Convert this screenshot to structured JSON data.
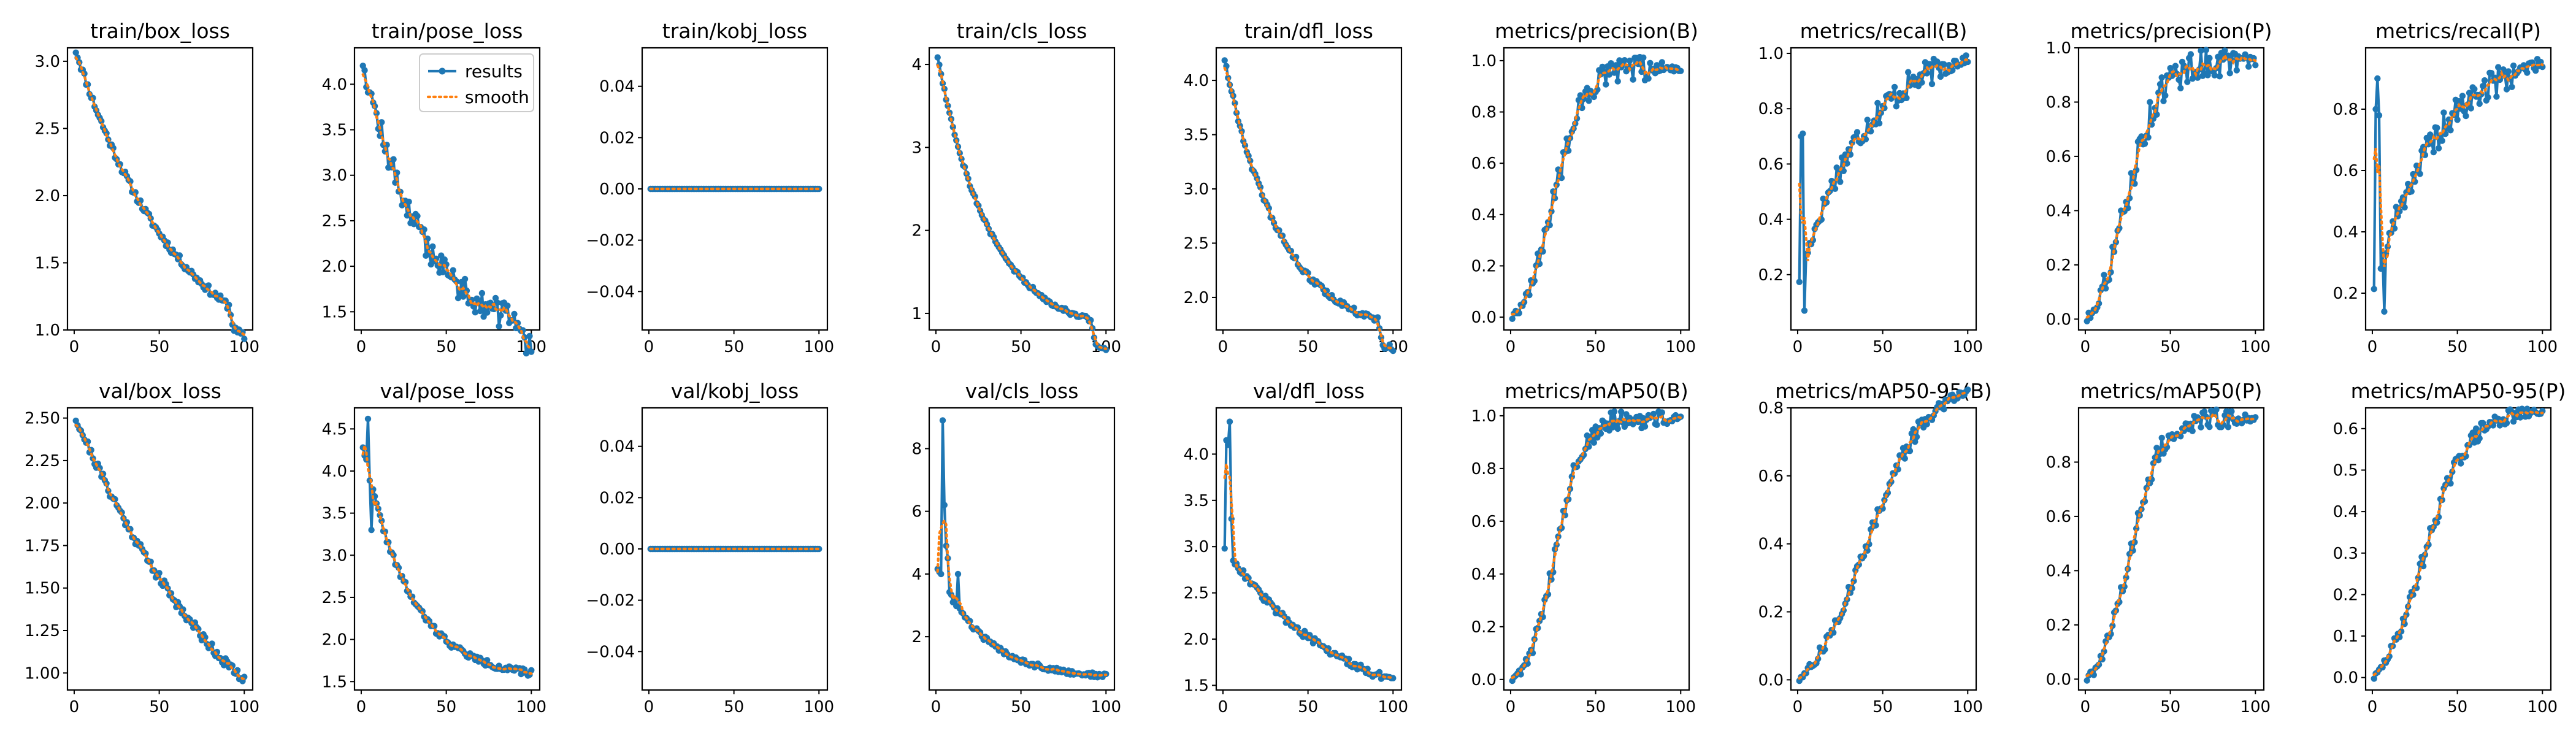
{
  "colors": {
    "results": "#1f77b4",
    "smooth": "#ff7f0e"
  },
  "legend": {
    "results_label": "results",
    "smooth_label": "smooth",
    "placement": "upper-right of panel 2"
  },
  "chart_data": [
    {
      "type": "line",
      "title": "train/box_loss",
      "x_range": [
        1,
        100
      ],
      "ylim": [
        1.0,
        3.1
      ],
      "yticks": [
        1.0,
        1.5,
        2.0,
        2.5,
        3.0
      ],
      "yticklabels": [
        "1.0",
        "1.5",
        "2.0",
        "2.5",
        "3.0"
      ],
      "xticks": [
        0,
        50,
        100
      ],
      "xticklabels": [
        "0",
        "50",
        "100"
      ],
      "shape": "decay",
      "start": 3.08,
      "end": 1.1,
      "k": 1.6,
      "noise": 0.03,
      "drops": [
        [
          92,
          -0.15
        ]
      ],
      "seed": 11,
      "series": [
        {
          "name": "results"
        },
        {
          "name": "smooth"
        }
      ]
    },
    {
      "type": "line",
      "title": "train/pose_loss",
      "x_range": [
        1,
        100
      ],
      "ylim": [
        1.3,
        4.4
      ],
      "yticks": [
        1.5,
        2.0,
        2.5,
        3.0,
        3.5,
        4.0
      ],
      "yticklabels": [
        "1.5",
        "2.0",
        "2.5",
        "3.0",
        "3.5",
        "4.0"
      ],
      "xticks": [
        0,
        50,
        100
      ],
      "xticklabels": [
        "0",
        "50",
        "100"
      ],
      "shape": "decay",
      "start": 4.28,
      "end": 1.35,
      "k": 2.8,
      "noise": 0.15,
      "drops": [
        [
          95,
          -0.2
        ]
      ],
      "seed": 12,
      "series": [
        {
          "name": "results"
        },
        {
          "name": "smooth"
        }
      ]
    },
    {
      "type": "line",
      "title": "train/kobj_loss",
      "x_range": [
        1,
        100
      ],
      "ylim": [
        -0.055,
        0.055
      ],
      "yticks": [
        -0.04,
        -0.02,
        0.0,
        0.02,
        0.04
      ],
      "yticklabels": [
        "−0.04",
        "−0.02",
        "0.00",
        "0.02",
        "0.04"
      ],
      "xticks": [
        0,
        50,
        100
      ],
      "xticklabels": [
        "0",
        "50",
        "100"
      ],
      "shape": "flat",
      "value": 0.0,
      "seed": 13,
      "series": [
        {
          "name": "results"
        },
        {
          "name": "smooth"
        }
      ]
    },
    {
      "type": "line",
      "title": "train/cls_loss",
      "x_range": [
        1,
        100
      ],
      "ylim": [
        0.8,
        4.2
      ],
      "yticks": [
        1,
        2,
        3,
        4
      ],
      "yticklabels": [
        "1",
        "2",
        "3",
        "4"
      ],
      "xticks": [
        0,
        50,
        100
      ],
      "xticklabels": [
        "0",
        "50",
        "100"
      ],
      "shape": "decay",
      "start": 4.1,
      "end": 0.88,
      "k": 3.2,
      "noise": 0.03,
      "drops": [
        [
          92,
          -0.3
        ]
      ],
      "seed": 14,
      "series": [
        {
          "name": "results"
        },
        {
          "name": "smooth"
        }
      ]
    },
    {
      "type": "line",
      "title": "train/dfl_loss",
      "x_range": [
        1,
        100
      ],
      "ylim": [
        1.7,
        4.3
      ],
      "yticks": [
        2.0,
        2.5,
        3.0,
        3.5,
        4.0
      ],
      "yticklabels": [
        "2.0",
        "2.5",
        "3.0",
        "3.5",
        "4.0"
      ],
      "xticks": [
        0,
        50,
        100
      ],
      "xticklabels": [
        "0",
        "50",
        "100"
      ],
      "shape": "decay",
      "start": 4.2,
      "end": 1.75,
      "k": 3.0,
      "noise": 0.03,
      "drops": [
        [
          92,
          -0.22
        ]
      ],
      "seed": 15,
      "series": [
        {
          "name": "results"
        },
        {
          "name": "smooth"
        }
      ]
    },
    {
      "type": "line",
      "title": "metrics/precision(B)",
      "x_range": [
        1,
        100
      ],
      "ylim": [
        -0.05,
        1.05
      ],
      "yticks": [
        0.0,
        0.2,
        0.4,
        0.6,
        0.8,
        1.0
      ],
      "yticklabels": [
        "0.0",
        "0.2",
        "0.4",
        "0.6",
        "0.8",
        "1.0"
      ],
      "xticks": [
        0,
        50,
        100
      ],
      "xticklabels": [
        "0",
        "50",
        "100"
      ],
      "shape": "sigmoid",
      "start": 0.0,
      "end": 0.97,
      "mid": 25,
      "width": 9,
      "noise": 0.05,
      "seed": 16,
      "series": [
        {
          "name": "results"
        },
        {
          "name": "smooth"
        }
      ]
    },
    {
      "type": "line",
      "title": "metrics/recall(B)",
      "x_range": [
        1,
        100
      ],
      "ylim": [
        0.0,
        1.02
      ],
      "yticks": [
        0.2,
        0.4,
        0.6,
        0.8,
        1.0
      ],
      "yticklabels": [
        "0.2",
        "0.4",
        "0.6",
        "0.8",
        "1.0"
      ],
      "xticks": [
        0,
        50,
        100
      ],
      "xticklabels": [
        "0",
        "50",
        "100"
      ],
      "shape": "rise",
      "start": 0.18,
      "end": 0.98,
      "k": 2.6,
      "noise": 0.05,
      "spikes": [
        [
          2,
          0.7
        ],
        [
          3,
          0.71
        ],
        [
          4,
          0.07
        ]
      ],
      "seed": 17,
      "series": [
        {
          "name": "results"
        },
        {
          "name": "smooth"
        }
      ]
    },
    {
      "type": "line",
      "title": "metrics/precision(P)",
      "x_range": [
        1,
        100
      ],
      "ylim": [
        -0.04,
        1.0
      ],
      "yticks": [
        0.0,
        0.2,
        0.4,
        0.6,
        0.8,
        1.0
      ],
      "yticklabels": [
        "0.0",
        "0.2",
        "0.4",
        "0.6",
        "0.8",
        "1.0"
      ],
      "xticks": [
        0,
        50,
        100
      ],
      "xticklabels": [
        "0",
        "50",
        "100"
      ],
      "shape": "sigmoid",
      "start": 0.0,
      "end": 0.95,
      "mid": 24,
      "width": 10,
      "noise": 0.06,
      "seed": 18,
      "series": [
        {
          "name": "results"
        },
        {
          "name": "smooth"
        }
      ]
    },
    {
      "type": "line",
      "title": "metrics/recall(P)",
      "x_range": [
        1,
        100
      ],
      "ylim": [
        0.08,
        1.0
      ],
      "yticks": [
        0.2,
        0.4,
        0.6,
        0.8
      ],
      "yticklabels": [
        "0.2",
        "0.4",
        "0.6",
        "0.8"
      ],
      "xticks": [
        0,
        50,
        100
      ],
      "xticklabels": [
        "0",
        "50",
        "100"
      ],
      "shape": "rise",
      "start": 0.22,
      "end": 0.95,
      "k": 2.6,
      "noise": 0.05,
      "spikes": [
        [
          2,
          0.8
        ],
        [
          3,
          0.9
        ],
        [
          4,
          0.78
        ],
        [
          7,
          0.14
        ]
      ],
      "seed": 19,
      "series": [
        {
          "name": "results"
        },
        {
          "name": "smooth"
        }
      ]
    },
    {
      "type": "line",
      "title": "val/box_loss",
      "x_range": [
        1,
        100
      ],
      "ylim": [
        0.9,
        2.56
      ],
      "yticks": [
        1.0,
        1.25,
        1.5,
        1.75,
        2.0,
        2.25,
        2.5
      ],
      "yticklabels": [
        "1.00",
        "1.25",
        "1.50",
        "1.75",
        "2.00",
        "2.25",
        "2.50"
      ],
      "xticks": [
        0,
        50,
        100
      ],
      "xticklabels": [
        "0",
        "50",
        "100"
      ],
      "shape": "decay",
      "start": 2.5,
      "end": 0.95,
      "k": 0.9,
      "noise": 0.03,
      "seed": 21,
      "series": [
        {
          "name": "results"
        },
        {
          "name": "smooth"
        }
      ]
    },
    {
      "type": "line",
      "title": "val/pose_loss",
      "x_range": [
        1,
        100
      ],
      "ylim": [
        1.4,
        4.75
      ],
      "yticks": [
        1.5,
        2.0,
        2.5,
        3.0,
        3.5,
        4.0,
        4.5
      ],
      "yticklabels": [
        "1.5",
        "2.0",
        "2.5",
        "3.0",
        "3.5",
        "4.0",
        "4.5"
      ],
      "xticks": [
        0,
        50,
        100
      ],
      "xticklabels": [
        "0",
        "50",
        "100"
      ],
      "shape": "decay",
      "start": 4.3,
      "end": 1.6,
      "k": 3.6,
      "noise": 0.04,
      "spikes": [
        [
          4,
          4.62
        ],
        [
          6,
          3.3
        ]
      ],
      "seed": 22,
      "series": [
        {
          "name": "results"
        },
        {
          "name": "smooth"
        }
      ]
    },
    {
      "type": "line",
      "title": "val/kobj_loss",
      "x_range": [
        1,
        100
      ],
      "ylim": [
        -0.055,
        0.055
      ],
      "yticks": [
        -0.04,
        -0.02,
        0.0,
        0.02,
        0.04
      ],
      "yticklabels": [
        "−0.04",
        "−0.02",
        "0.00",
        "0.02",
        "0.04"
      ],
      "xticks": [
        0,
        50,
        100
      ],
      "xticklabels": [
        "0",
        "50",
        "100"
      ],
      "shape": "flat",
      "value": 0.0,
      "seed": 23,
      "series": [
        {
          "name": "results"
        },
        {
          "name": "smooth"
        }
      ]
    },
    {
      "type": "line",
      "title": "val/cls_loss",
      "x_range": [
        1,
        100
      ],
      "ylim": [
        0.3,
        9.3
      ],
      "yticks": [
        2,
        4,
        6,
        8
      ],
      "yticklabels": [
        "2",
        "4",
        "6",
        "8"
      ],
      "xticks": [
        0,
        50,
        100
      ],
      "xticklabels": [
        "0",
        "50",
        "100"
      ],
      "shape": "decay",
      "start": 4.2,
      "end": 0.75,
      "k": 3.6,
      "noise": 0.08,
      "spikes": [
        [
          3,
          4.0
        ],
        [
          4,
          8.9
        ],
        [
          5,
          6.2
        ],
        [
          6,
          4.9
        ],
        [
          7,
          4.5
        ],
        [
          10,
          3.1
        ],
        [
          13,
          4.0
        ]
      ],
      "seed": 24,
      "series": [
        {
          "name": "results"
        },
        {
          "name": "smooth"
        }
      ]
    },
    {
      "type": "line",
      "title": "val/dfl_loss",
      "x_range": [
        1,
        100
      ],
      "ylim": [
        1.45,
        4.5
      ],
      "yticks": [
        1.5,
        2.0,
        2.5,
        3.0,
        3.5,
        4.0
      ],
      "yticklabels": [
        "1.5",
        "2.0",
        "2.5",
        "3.0",
        "3.5",
        "4.0"
      ],
      "xticks": [
        0,
        50,
        100
      ],
      "xticklabels": [
        "0",
        "50",
        "100"
      ],
      "shape": "decay",
      "start": 3.0,
      "end": 1.55,
      "k": 1.5,
      "noise": 0.04,
      "spikes": [
        [
          2,
          4.15
        ],
        [
          3,
          4.1
        ],
        [
          4,
          4.35
        ],
        [
          5,
          3.3
        ]
      ],
      "seed": 25,
      "series": [
        {
          "name": "results"
        },
        {
          "name": "smooth"
        }
      ]
    },
    {
      "type": "line",
      "title": "metrics/mAP50(B)",
      "x_range": [
        1,
        100
      ],
      "ylim": [
        -0.04,
        1.03
      ],
      "yticks": [
        0.0,
        0.2,
        0.4,
        0.6,
        0.8,
        1.0
      ],
      "yticklabels": [
        "0.0",
        "0.2",
        "0.4",
        "0.6",
        "0.8",
        "1.0"
      ],
      "xticks": [
        0,
        50,
        100
      ],
      "xticklabels": [
        "0",
        "50",
        "100"
      ],
      "shape": "sigmoid",
      "start": 0.0,
      "end": 0.99,
      "mid": 26,
      "width": 8,
      "noise": 0.04,
      "seed": 26,
      "series": [
        {
          "name": "results"
        },
        {
          "name": "smooth"
        }
      ]
    },
    {
      "type": "line",
      "title": "metrics/mAP50-95(B)",
      "x_range": [
        1,
        100
      ],
      "ylim": [
        -0.03,
        0.8
      ],
      "yticks": [
        0.0,
        0.2,
        0.4,
        0.6,
        0.8
      ],
      "yticklabels": [
        "0.0",
        "0.2",
        "0.4",
        "0.6",
        "0.8"
      ],
      "xticks": [
        0,
        50,
        100
      ],
      "xticklabels": [
        "0",
        "50",
        "100"
      ],
      "shape": "sigmoid",
      "start": 0.0,
      "end": 0.85,
      "mid": 40,
      "width": 18,
      "noise": 0.025,
      "seed": 27,
      "series": [
        {
          "name": "results"
        },
        {
          "name": "smooth"
        }
      ]
    },
    {
      "type": "line",
      "title": "metrics/mAP50(P)",
      "x_range": [
        1,
        100
      ],
      "ylim": [
        -0.04,
        1.0
      ],
      "yticks": [
        0.0,
        0.2,
        0.4,
        0.6,
        0.8
      ],
      "yticklabels": [
        "0.0",
        "0.2",
        "0.4",
        "0.6",
        "0.8"
      ],
      "xticks": [
        0,
        50,
        100
      ],
      "xticklabels": [
        "0",
        "50",
        "100"
      ],
      "shape": "sigmoid",
      "start": 0.0,
      "end": 0.96,
      "mid": 26,
      "width": 9,
      "noise": 0.04,
      "seed": 28,
      "series": [
        {
          "name": "results"
        },
        {
          "name": "smooth"
        }
      ]
    },
    {
      "type": "line",
      "title": "metrics/mAP50-95(P)",
      "x_range": [
        1,
        100
      ],
      "ylim": [
        -0.03,
        0.65
      ],
      "yticks": [
        0.0,
        0.1,
        0.2,
        0.3,
        0.4,
        0.5,
        0.6
      ],
      "yticklabels": [
        "0.0",
        "0.1",
        "0.2",
        "0.3",
        "0.4",
        "0.5",
        "0.6"
      ],
      "xticks": [
        0,
        50,
        100
      ],
      "xticklabels": [
        "0",
        "50",
        "100"
      ],
      "shape": "sigmoid",
      "start": 0.0,
      "end": 0.64,
      "mid": 30,
      "width": 13,
      "noise": 0.02,
      "seed": 29,
      "series": [
        {
          "name": "results"
        },
        {
          "name": "smooth"
        }
      ]
    }
  ]
}
